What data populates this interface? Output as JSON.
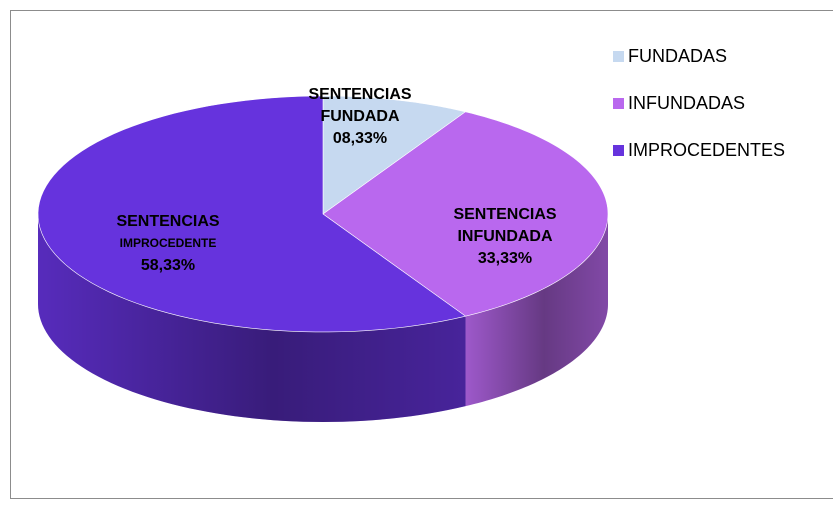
{
  "chart_data": {
    "type": "pie3d",
    "categories": [
      "FUNDADAS",
      "INFUNDADAS",
      "IMPROCEDENTES"
    ],
    "values": [
      8.33,
      33.33,
      58.33
    ],
    "value_labels": [
      "08,33%",
      "33,33%",
      "58,33%"
    ],
    "slice_labels": [
      [
        "SENTENCIAS",
        "FUNDADA"
      ],
      [
        "SENTENCIAS",
        "INFUNDADA"
      ],
      [
        "SENTENCIAS",
        "IMPROCEDENTE"
      ]
    ],
    "colors": [
      "#c6d9f0",
      "#b968ee",
      "#6633dd"
    ],
    "legend": "right"
  }
}
